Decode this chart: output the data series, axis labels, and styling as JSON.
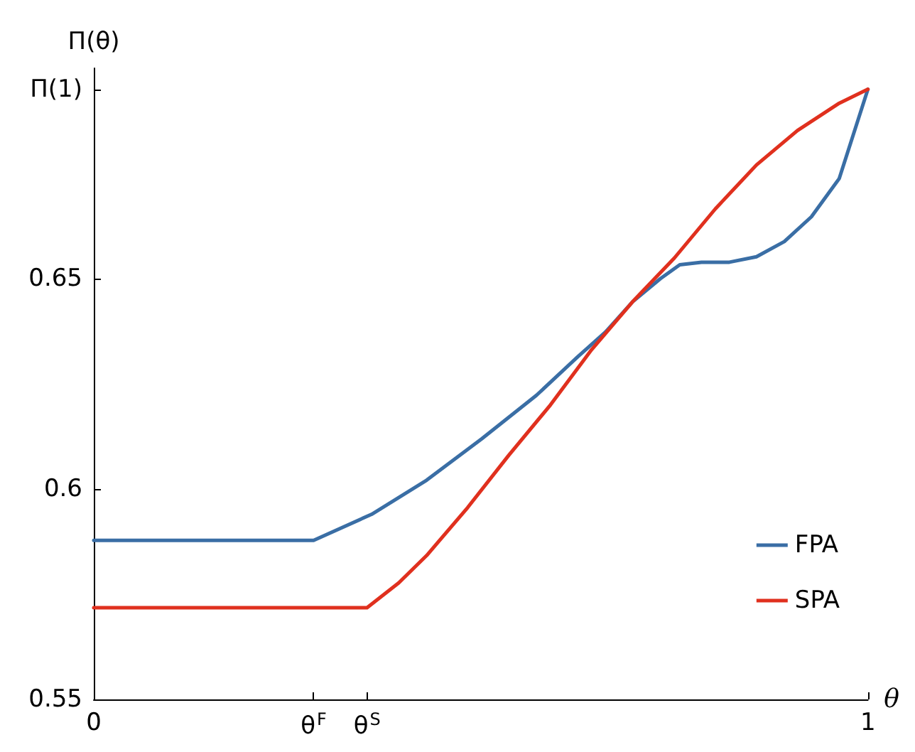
{
  "chart_data": {
    "type": "line",
    "xlabel": "θ",
    "ylabel": "Π(θ)",
    "xlim": [
      0,
      1
    ],
    "ylim": [
      0.55,
      0.7
    ],
    "xticks": [
      0,
      {
        "value": 0.284,
        "label": "θ$^{F}$"
      },
      {
        "value": 0.353,
        "label": "θ$^{S}$"
      },
      1
    ],
    "yticks": [
      0.55,
      0.6,
      0.65,
      {
        "value": 0.695,
        "label": "Π(1)"
      }
    ],
    "grid": false,
    "legend": "bottom right",
    "marker": "none",
    "line_style": "solid",
    "series": [
      {
        "name": "FPA",
        "color": "#3a6ea5",
        "x": [
          0,
          0.284,
          0.359,
          0.43,
          0.501,
          0.572,
          0.625,
          0.661,
          0.696,
          0.732,
          0.757,
          0.785,
          0.821,
          0.856,
          0.892,
          0.927,
          0.963,
          1
        ],
        "values": [
          0.5878,
          0.5878,
          0.594,
          0.6021,
          0.6119,
          0.6223,
          0.6314,
          0.6373,
          0.6445,
          0.65,
          0.6533,
          0.6539,
          0.6539,
          0.6552,
          0.6588,
          0.6647,
          0.6738,
          0.695
        ]
      },
      {
        "name": "SPA",
        "color": "#e0301e",
        "x": [
          0,
          0.353,
          0.394,
          0.43,
          0.483,
          0.536,
          0.59,
          0.643,
          0.696,
          0.75,
          0.803,
          0.856,
          0.909,
          0.963,
          1
        ],
        "values": [
          0.5718,
          0.5718,
          0.5777,
          0.5842,
          0.5956,
          0.608,
          0.62,
          0.6331,
          0.6445,
          0.6549,
          0.6666,
          0.677,
          0.6852,
          0.6917,
          0.695
        ]
      }
    ]
  }
}
